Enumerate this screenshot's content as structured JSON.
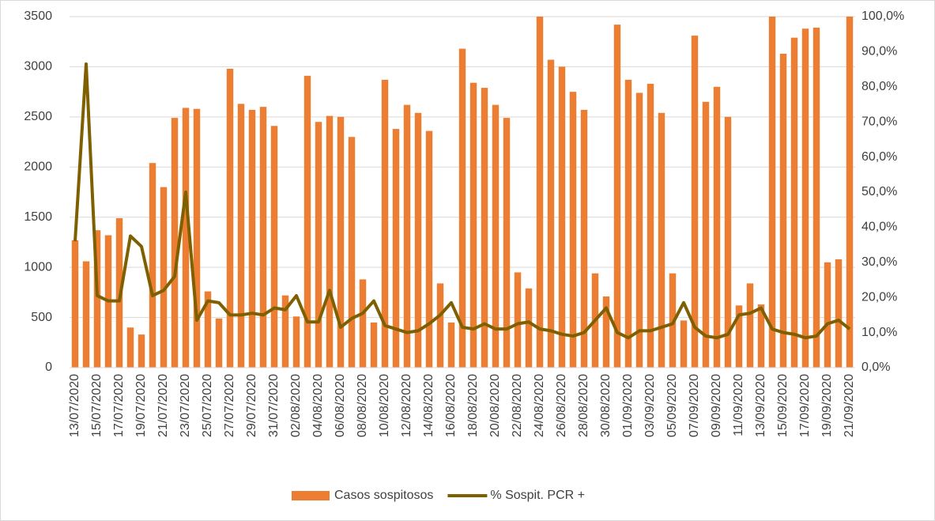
{
  "chart_data": {
    "type": "bar_line",
    "categories": [
      "13/07/2020",
      null,
      "15/07/2020",
      null,
      "17/07/2020",
      null,
      "19/07/2020",
      null,
      "21/07/2020",
      null,
      "23/07/2020",
      null,
      "25/07/2020",
      null,
      "27/07/2020",
      null,
      "29/07/2020",
      null,
      "31/07/2020",
      null,
      "02/08/2020",
      null,
      "04/08/2020",
      null,
      "06/08/2020",
      null,
      "08/08/2020",
      null,
      "10/08/2020",
      null,
      "12/08/2020",
      null,
      "14/08/2020",
      null,
      "16/08/2020",
      null,
      "18/08/2020",
      null,
      "20/08/2020",
      null,
      "22/08/2020",
      null,
      "24/08/2020",
      null,
      "26/08/2020",
      null,
      "28/08/2020",
      null,
      "30/08/2020",
      null,
      "01/09/2020",
      null,
      "03/09/2020",
      null,
      "05/09/2020",
      null,
      "07/09/2020",
      null,
      "09/09/2020",
      null,
      "11/09/2020",
      null,
      "13/09/2020",
      null,
      "15/09/2020",
      null,
      "17/09/2020",
      null,
      "19/09/2020",
      null,
      "21/09/2020"
    ],
    "series": [
      {
        "name": "Casos sospitosos",
        "color": "#ed7d31",
        "kind": "bar",
        "values": [
          1270,
          1060,
          1370,
          1320,
          1490,
          400,
          330,
          2040,
          1800,
          2490,
          2590,
          2580,
          760,
          490,
          2980,
          2630,
          2570,
          2600,
          2410,
          720,
          510,
          2910,
          2450,
          2510,
          2500,
          2300,
          880,
          450,
          2870,
          2380,
          2620,
          2540,
          2360,
          840,
          450,
          3180,
          2840,
          2790,
          2620,
          2490,
          950,
          790,
          3500,
          3070,
          3000,
          2750,
          2570,
          940,
          710,
          3420,
          2870,
          2740,
          2830,
          2540,
          940,
          470,
          3310,
          2650,
          2800,
          2500,
          620,
          840,
          630,
          3500,
          3130,
          3290,
          3380,
          3390,
          1050,
          1080,
          3500
        ]
      },
      {
        "name": "% Sospit. PCR +",
        "color": "#7f6000",
        "kind": "line",
        "axis": "y2",
        "values": [
          36,
          86.5,
          20.5,
          19,
          19,
          37.5,
          34.5,
          20.5,
          22,
          26,
          50,
          13.5,
          19,
          18.5,
          15,
          15,
          15.5,
          15,
          17,
          16.5,
          20.5,
          13,
          13,
          22,
          11.5,
          14,
          15.5,
          19,
          12,
          11,
          10,
          10.5,
          12.5,
          15,
          18.5,
          11.5,
          11,
          12.5,
          11,
          11,
          12.5,
          13,
          11,
          10.5,
          9.5,
          9,
          10,
          13.5,
          17,
          10,
          8.5,
          10.5,
          10.5,
          11.5,
          12.5,
          18.5,
          11.5,
          9,
          8.5,
          9.5,
          15,
          15.5,
          17,
          11,
          10,
          9.5,
          8.5,
          9,
          12.5,
          13.5,
          11
        ]
      }
    ],
    "ylim": [
      0,
      3500
    ],
    "yticks": [
      0,
      500,
      1000,
      1500,
      2000,
      2500,
      3000,
      3500
    ],
    "y2lim": [
      0,
      100
    ],
    "y2ticks": [
      {
        "value": 0,
        "label": "0,0%"
      },
      {
        "value": 10,
        "label": "10,0%"
      },
      {
        "value": 20,
        "label": "20,0%"
      },
      {
        "value": 30,
        "label": "30,0%"
      },
      {
        "value": 40,
        "label": "40,0%"
      },
      {
        "value": 50,
        "label": "50,0%"
      },
      {
        "value": 60,
        "label": "60,0%"
      },
      {
        "value": 70,
        "label": "70,0%"
      },
      {
        "value": 80,
        "label": "80,0%"
      },
      {
        "value": 90,
        "label": "90,0%"
      },
      {
        "value": 100,
        "label": "100,0%"
      }
    ],
    "grid": true,
    "legend": "bottom"
  }
}
